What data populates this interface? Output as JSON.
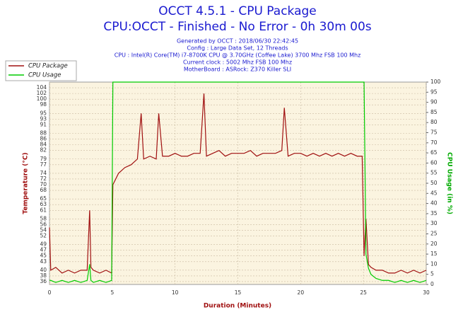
{
  "chart_data": {
    "type": "line",
    "title": "OCCT 4.5.1 - CPU Package",
    "subtitle": "CPU:OCCT - Finished - No Error - 0h 30m 00s",
    "info": [
      "Generated by OCCT : 2018/06/30 22:42:45",
      "Config : Large Data Set, 12 Threads",
      "CPU : Intel(R) Core(TM) i7-8700K CPU @ 3.70GHz (Coffee Lake) 3700 Mhz FSB 100 Mhz",
      "Current clock : 5002 Mhz FSB 100 Mhz",
      "MotherBoard : ASRock: Z370 Killer SLI"
    ],
    "xlabel": "Duration (Minutes)",
    "ylabel": "Temperature (°C)",
    "y2label": "CPU Usage (in %)",
    "x": [
      0,
      0.1,
      0.5,
      1,
      1.5,
      2,
      2.5,
      3,
      3.2,
      3.3,
      3.5,
      4,
      4.5,
      4.95,
      5.05,
      5.5,
      6,
      6.5,
      7,
      7.3,
      7.5,
      8,
      8.5,
      8.7,
      9,
      9.5,
      10,
      10.5,
      11,
      11.5,
      12,
      12.3,
      12.5,
      13,
      13.5,
      14,
      14.5,
      15,
      15.5,
      16,
      16.5,
      17,
      17.5,
      18,
      18.5,
      18.7,
      19,
      19.5,
      20,
      20.5,
      21,
      21.5,
      22,
      22.5,
      23,
      23.5,
      24,
      24.5,
      24.9,
      25.05,
      25.2,
      25.4,
      25.6,
      26,
      26.5,
      27,
      27.5,
      28,
      28.5,
      29,
      29.5,
      30
    ],
    "series": [
      {
        "name": "CPU Package",
        "color": "#a01010",
        "axis": "y",
        "values": [
          55,
          40,
          41,
          39,
          40,
          39,
          40,
          40,
          61,
          41,
          40,
          39,
          40,
          39,
          70,
          74,
          76,
          77,
          79,
          95,
          79,
          80,
          79,
          95,
          80,
          80,
          81,
          80,
          80,
          81,
          81,
          102,
          80,
          81,
          82,
          80,
          81,
          81,
          81,
          82,
          80,
          81,
          81,
          81,
          82,
          97,
          80,
          81,
          81,
          80,
          81,
          80,
          81,
          80,
          81,
          80,
          81,
          80,
          80,
          45,
          58,
          42,
          41,
          40,
          40,
          39,
          39,
          40,
          39,
          40,
          39,
          40
        ]
      },
      {
        "name": "CPU Usage",
        "color": "#00cc00",
        "axis": "y2",
        "values": [
          2,
          2,
          1,
          2,
          1,
          2,
          1,
          2,
          10,
          2,
          1,
          2,
          1,
          2,
          100,
          100,
          100,
          100,
          100,
          100,
          100,
          100,
          100,
          100,
          100,
          100,
          100,
          100,
          100,
          100,
          100,
          100,
          100,
          100,
          100,
          100,
          100,
          100,
          100,
          100,
          100,
          100,
          100,
          100,
          100,
          100,
          100,
          100,
          100,
          100,
          100,
          100,
          100,
          100,
          100,
          100,
          100,
          100,
          100,
          100,
          15,
          8,
          5,
          3,
          2,
          2,
          1,
          2,
          1,
          2,
          1,
          2
        ]
      }
    ],
    "xlim": [
      0,
      30
    ],
    "xticks": [
      0,
      5,
      10,
      15,
      20,
      25,
      30
    ],
    "ylim": [
      35,
      106
    ],
    "yticks": [
      104,
      102,
      100,
      98,
      95,
      93,
      91,
      88,
      86,
      84,
      82,
      79,
      77,
      74,
      72,
      70,
      68,
      65,
      63,
      61,
      58,
      56,
      54,
      52,
      49,
      47,
      45,
      43,
      40,
      38,
      36
    ],
    "y2lim": [
      0,
      100
    ],
    "y2ticks": [
      0,
      5,
      10,
      15,
      20,
      25,
      30,
      35,
      40,
      45,
      50,
      55,
      60,
      65,
      70,
      75,
      80,
      85,
      90,
      95,
      100
    ],
    "grid": true
  }
}
